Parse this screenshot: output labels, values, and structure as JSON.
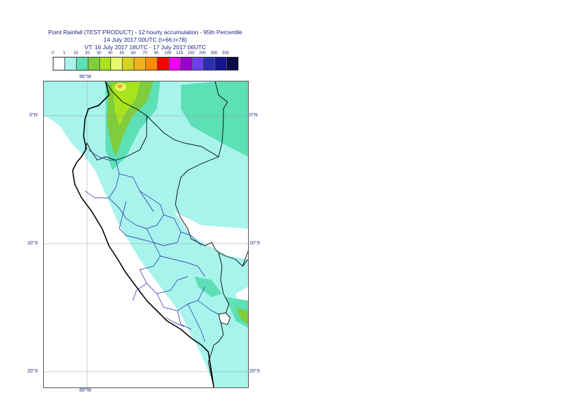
{
  "title": {
    "line1": "Point Rainfall (TEST PRODUCT) - 12 hourly accumulation - 95th Percentile",
    "line2": "14 July 2017 00UTC (t+66,t+78)",
    "line3": "VT: 16 July 2017 18UTC - 17 July 2017 06UTC"
  },
  "legend": {
    "ticks": [
      "0",
      "1",
      "10",
      "20",
      "30",
      "40",
      "50",
      "60",
      "70",
      "80",
      "100",
      "125",
      "150",
      "200",
      "300",
      "500"
    ],
    "colors": [
      "#ffffff",
      "#a8f4ec",
      "#5de0b6",
      "#7fcc3c",
      "#a8e31e",
      "#e8f86c",
      "#d7d21e",
      "#f2b21e",
      "#ff8a00",
      "#ff0000",
      "#ee00ee",
      "#9900cc",
      "#6e41f0",
      "#2b2fb2",
      "#151590",
      "#0b0b45"
    ]
  },
  "axes": {
    "top_lon_label": "80°W",
    "bottom_lon_label": "80°W",
    "lat_labels": [
      "0°N",
      "10°S",
      "20°S"
    ]
  },
  "map": {
    "country_border_color": "#000000",
    "region_border_color": "#1a1aa8",
    "light_rain_color": "#a8f4ec"
  }
}
